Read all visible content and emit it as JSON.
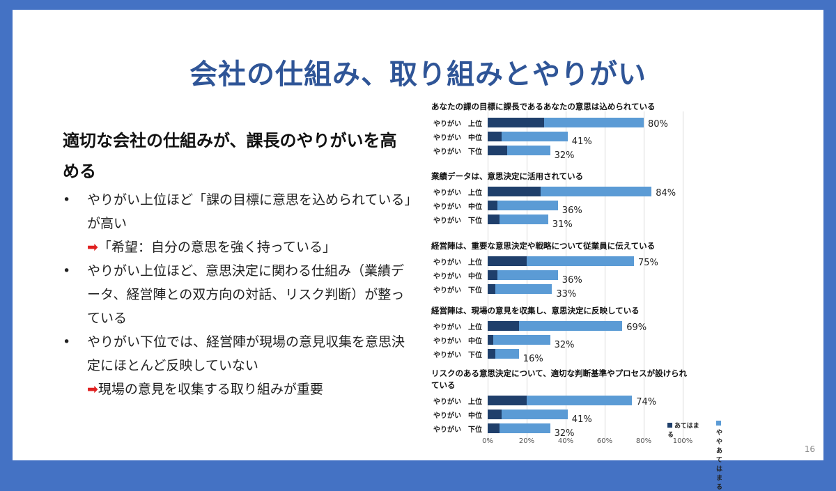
{
  "title": "会社の仕組み、取り組みとやりがい",
  "subtitle": "適切な会社の仕組みが、課長のやりがいを高める",
  "bullets": [
    {
      "text": "やりがい上位ほど「課の目標に意思を込められている」が高い",
      "sub": "「希望：自分の意思を強く持っている」"
    },
    {
      "text": "やりがい上位ほど、意思決定に関わる仕組み（業績データ、経営陣との双方向の対話、リスク判断）が整っている"
    },
    {
      "text": "やりがい下位では、経営陣が現場の意見収集を意思決定にほとんど反映していない",
      "sub": "現場の意見を収集する取り組みが重要"
    }
  ],
  "bullet_symbol": "•",
  "arrow_symbol": "➡",
  "page_number": "16",
  "chart_data": {
    "type": "bar",
    "stacked": true,
    "orientation": "horizontal",
    "xlim": [
      0,
      100
    ],
    "ticks": [
      "0%",
      "20%",
      "40%",
      "60%",
      "80%",
      "100%"
    ],
    "legend": [
      "あてはまる",
      "ややあてはまる"
    ],
    "legend_position": "bottom-right",
    "colors": [
      "#1f3f6b",
      "#5b9bd5"
    ],
    "groups": [
      {
        "title": "あなたの課の目標に課長であるあなたの意思は込められている",
        "rows": [
          {
            "label": "やりがい　上位",
            "dark": 29,
            "total": 80,
            "value_label": "80%"
          },
          {
            "label": "やりがい　中位",
            "dark": 7,
            "total": 41,
            "value_label": "41%"
          },
          {
            "label": "やりがい　下位",
            "dark": 10,
            "total": 32,
            "value_label": "32%"
          }
        ]
      },
      {
        "title": "業績データは、意思決定に活用されている",
        "rows": [
          {
            "label": "やりがい　上位",
            "dark": 27,
            "total": 84,
            "value_label": "84%"
          },
          {
            "label": "やりがい　中位",
            "dark": 5,
            "total": 36,
            "value_label": "36%"
          },
          {
            "label": "やりがい　下位",
            "dark": 6,
            "total": 31,
            "value_label": "31%"
          }
        ]
      },
      {
        "title": "経営陣は、重要な意思決定や戦略について従業員に伝えている",
        "rows": [
          {
            "label": "やりがい　上位",
            "dark": 20,
            "total": 75,
            "value_label": "75%"
          },
          {
            "label": "やりがい　中位",
            "dark": 5,
            "total": 36,
            "value_label": "36%"
          },
          {
            "label": "やりがい　下位",
            "dark": 4,
            "total": 33,
            "value_label": "33%"
          }
        ]
      },
      {
        "title": "経営陣は、現場の意見を収集し、意思決定に反映している",
        "rows": [
          {
            "label": "やりがい　上位",
            "dark": 16,
            "total": 69,
            "value_label": "69%"
          },
          {
            "label": "やりがい　中位",
            "dark": 3,
            "total": 32,
            "value_label": "32%"
          },
          {
            "label": "やりがい　下位",
            "dark": 4,
            "total": 16,
            "value_label": "16%"
          }
        ]
      },
      {
        "title": "リスクのある意思決定について、適切な判断基準やプロセスが設けられている",
        "rows": [
          {
            "label": "やりがい　上位",
            "dark": 20,
            "total": 74,
            "value_label": "74%"
          },
          {
            "label": "やりがい　中位",
            "dark": 7,
            "total": 41,
            "value_label": "41%"
          },
          {
            "label": "やりがい　下位",
            "dark": 6,
            "total": 32,
            "value_label": "32%"
          }
        ]
      }
    ]
  }
}
